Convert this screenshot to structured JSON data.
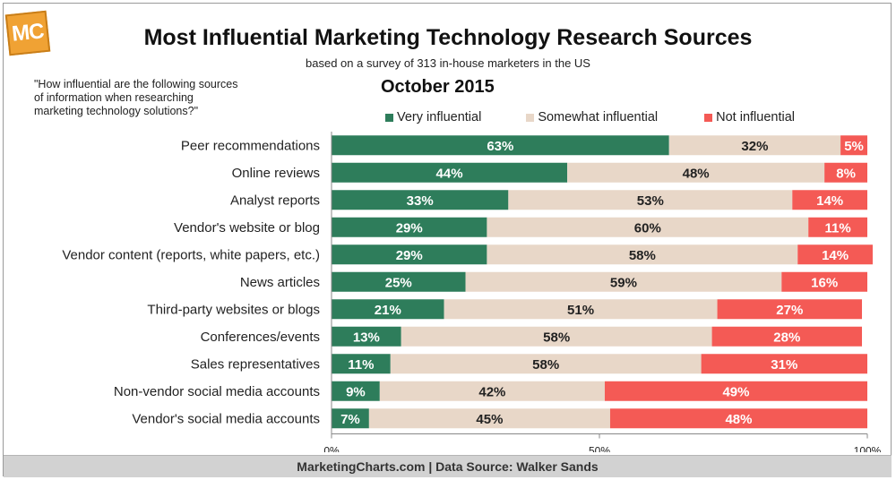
{
  "brand": {
    "logo_text": "MC"
  },
  "header": {
    "title": "Most Influential Marketing Technology Research Sources",
    "subtitle": "based on a survey of 313 in-house marketers in the US"
  },
  "question": "\"How influential are the following sources\nof information when researching\nmarketing technology solutions?\"",
  "period": "October 2015",
  "footer": "MarketingCharts.com | Data Source: Walker Sands",
  "colors": {
    "very": "#2e7d5b",
    "somewhat": "#e8d7c8",
    "not": "#f45a55"
  },
  "chart_data": {
    "type": "bar",
    "orientation": "horizontal",
    "stacked": true,
    "categories": [
      "Peer recommendations",
      "Online reviews",
      "Analyst reports",
      "Vendor's website or blog",
      "Vendor content (reports, white papers, etc.)",
      "News articles",
      "Third-party websites or blogs",
      "Conferences/events",
      "Sales representatives",
      "Non-vendor social media accounts",
      "Vendor's social media accounts"
    ],
    "series": [
      {
        "name": "Very influential",
        "values": [
          63,
          44,
          33,
          29,
          29,
          25,
          21,
          13,
          11,
          9,
          7
        ]
      },
      {
        "name": "Somewhat influential",
        "values": [
          32,
          48,
          53,
          60,
          58,
          59,
          51,
          58,
          58,
          42,
          45
        ]
      },
      {
        "name": "Not influential",
        "values": [
          5,
          8,
          14,
          11,
          14,
          16,
          27,
          28,
          31,
          49,
          48
        ]
      }
    ],
    "data_labels": [
      [
        "63%",
        "44%",
        "33%",
        "29%",
        "29%",
        "25%",
        "21%",
        "13%",
        "11%",
        "9%",
        "7%"
      ],
      [
        "32%",
        "48%",
        "53%",
        "60%",
        "58%",
        "59%",
        "51%",
        "58%",
        "58%",
        "42%",
        "45%"
      ],
      [
        "5%",
        "8%",
        "14%",
        "11%",
        "14%",
        "16%",
        "27%",
        "28%",
        "31%",
        "49%",
        "48%"
      ]
    ],
    "x_ticks": [
      "0%",
      "50%",
      "100%"
    ],
    "xlim": [
      0,
      100
    ],
    "grid": false,
    "legend_position": "top"
  }
}
